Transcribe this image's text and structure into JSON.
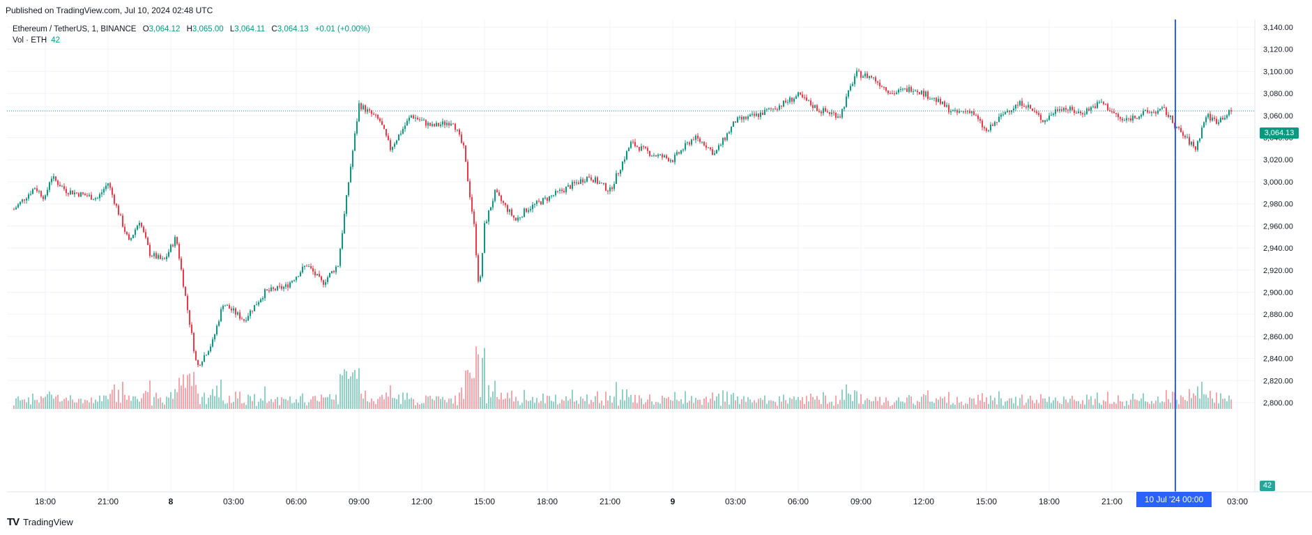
{
  "header": {
    "published": "Published on TradingView.com, Jul 10, 2024 02:48 UTC"
  },
  "legend": {
    "symbol": "Ethereum / TetherUS, 1, BINANCE",
    "o_label": "O",
    "o_value": "3,064.12",
    "h_label": "H",
    "h_value": "3,065.00",
    "l_label": "L",
    "l_value": "3,064.11",
    "c_label": "C",
    "c_value": "3,064.13",
    "change": "+0.01 (+0.00%)",
    "volume_label": "Vol · ETH",
    "volume_value": "42"
  },
  "price_axis": {
    "ticks": [
      "3,140.00",
      "3,120.00",
      "3,100.00",
      "3,080.00",
      "3,060.00",
      "3,040.00",
      "3,020.00",
      "3,000.00",
      "2,980.00",
      "2,960.00",
      "2,940.00",
      "2,920.00",
      "2,900.00",
      "2,880.00",
      "2,860.00",
      "2,840.00",
      "2,820.00",
      "2,800.00"
    ],
    "current_price": "3,064.13",
    "current_volume": "42"
  },
  "time_axis": {
    "ticks": [
      "18:00",
      "21:00",
      "8",
      "03:00",
      "06:00",
      "09:00",
      "12:00",
      "15:00",
      "18:00",
      "21:00",
      "9",
      "03:00",
      "06:00",
      "09:00",
      "12:00",
      "15:00",
      "18:00",
      "21:00",
      "10 Jul '24   00:00",
      "03:00"
    ]
  },
  "colors": {
    "up": "#089981",
    "down": "#f23645",
    "crosshair": "#2962ff",
    "grid": "#f0f3fa"
  },
  "brand": {
    "name": "TradingView",
    "logo_icon": "tradingview-logo-icon"
  },
  "chart_data": {
    "type": "candlestick",
    "title": "Ethereum / TetherUS, 1, BINANCE",
    "y_range": [
      2800,
      3140
    ],
    "x_range_hours": [
      "Jul 7 16:30",
      "Jul 10 03:30"
    ],
    "last_price": 3064.13,
    "price_path": [
      {
        "t": "Jul 7 16:30",
        "p": 2975
      },
      {
        "t": "Jul 7 17:30",
        "p": 2995
      },
      {
        "t": "Jul 7 18:00",
        "p": 2985
      },
      {
        "t": "Jul 7 18:15",
        "p": 3005
      },
      {
        "t": "Jul 7 19:00",
        "p": 2992
      },
      {
        "t": "Jul 7 20:30",
        "p": 2985
      },
      {
        "t": "Jul 7 21:00",
        "p": 2999
      },
      {
        "t": "Jul 7 21:30",
        "p": 2972
      },
      {
        "t": "Jul 7 22:00",
        "p": 2945
      },
      {
        "t": "Jul 7 22:30",
        "p": 2965
      },
      {
        "t": "Jul 7 23:00",
        "p": 2935
      },
      {
        "t": "Jul 7 23:40",
        "p": 2928
      },
      {
        "t": "Jul 8 00:15",
        "p": 2950
      },
      {
        "t": "Jul 8 00:45",
        "p": 2890
      },
      {
        "t": "Jul 8 01:15",
        "p": 2832
      },
      {
        "t": "Jul 8 02:00",
        "p": 2855
      },
      {
        "t": "Jul 8 02:30",
        "p": 2890
      },
      {
        "t": "Jul 8 03:30",
        "p": 2875
      },
      {
        "t": "Jul 8 04:30",
        "p": 2900
      },
      {
        "t": "Jul 8 05:30",
        "p": 2905
      },
      {
        "t": "Jul 8 06:30",
        "p": 2925
      },
      {
        "t": "Jul 8 07:15",
        "p": 2908
      },
      {
        "t": "Jul 8 08:00",
        "p": 2925
      },
      {
        "t": "Jul 8 08:30",
        "p": 3000
      },
      {
        "t": "Jul 8 09:00",
        "p": 3070
      },
      {
        "t": "Jul 8 10:00",
        "p": 3055
      },
      {
        "t": "Jul 8 10:30",
        "p": 3030
      },
      {
        "t": "Jul 8 11:30",
        "p": 3060
      },
      {
        "t": "Jul 8 12:30",
        "p": 3050
      },
      {
        "t": "Jul 8 13:30",
        "p": 3055
      },
      {
        "t": "Jul 8 14:00",
        "p": 3030
      },
      {
        "t": "Jul 8 14:30",
        "p": 2960
      },
      {
        "t": "Jul 8 14:45",
        "p": 2900
      },
      {
        "t": "Jul 8 15:00",
        "p": 2960
      },
      {
        "t": "Jul 8 15:30",
        "p": 2990
      },
      {
        "t": "Jul 8 16:30",
        "p": 2965
      },
      {
        "t": "Jul 8 17:00",
        "p": 2975
      },
      {
        "t": "Jul 8 18:00",
        "p": 2985
      },
      {
        "t": "Jul 8 19:00",
        "p": 2995
      },
      {
        "t": "Jul 8 20:00",
        "p": 3005
      },
      {
        "t": "Jul 8 21:00",
        "p": 2992
      },
      {
        "t": "Jul 8 22:00",
        "p": 3035
      },
      {
        "t": "Jul 8 23:00",
        "p": 3025
      },
      {
        "t": "Jul 9 00:00",
        "p": 3020
      },
      {
        "t": "Jul 9 01:00",
        "p": 3040
      },
      {
        "t": "Jul 9 01:30",
        "p": 3035
      },
      {
        "t": "Jul 9 02:00",
        "p": 3025
      },
      {
        "t": "Jul 9 03:00",
        "p": 3055
      },
      {
        "t": "Jul 9 04:00",
        "p": 3060
      },
      {
        "t": "Jul 9 05:00",
        "p": 3068
      },
      {
        "t": "Jul 9 06:00",
        "p": 3078
      },
      {
        "t": "Jul 9 07:00",
        "p": 3065
      },
      {
        "t": "Jul 9 08:00",
        "p": 3060
      },
      {
        "t": "Jul 9 08:45",
        "p": 3098
      },
      {
        "t": "Jul 9 09:30",
        "p": 3095
      },
      {
        "t": "Jul 9 10:30",
        "p": 3080
      },
      {
        "t": "Jul 9 11:30",
        "p": 3085
      },
      {
        "t": "Jul 9 12:30",
        "p": 3075
      },
      {
        "t": "Jul 9 13:30",
        "p": 3062
      },
      {
        "t": "Jul 9 14:15",
        "p": 3065
      },
      {
        "t": "Jul 9 15:00",
        "p": 3045
      },
      {
        "t": "Jul 9 16:00",
        "p": 3065
      },
      {
        "t": "Jul 9 16:45",
        "p": 3072
      },
      {
        "t": "Jul 9 17:45",
        "p": 3055
      },
      {
        "t": "Jul 9 18:30",
        "p": 3068
      },
      {
        "t": "Jul 9 19:30",
        "p": 3062
      },
      {
        "t": "Jul 9 20:30",
        "p": 3072
      },
      {
        "t": "Jul 9 21:30",
        "p": 3055
      },
      {
        "t": "Jul 9 22:30",
        "p": 3062
      },
      {
        "t": "Jul 9 23:30",
        "p": 3065
      },
      {
        "t": "Jul 10 00:15",
        "p": 3045
      },
      {
        "t": "Jul 10 01:00",
        "p": 3030
      },
      {
        "t": "Jul 10 01:30",
        "p": 3060
      },
      {
        "t": "Jul 10 02:00",
        "p": 3055
      },
      {
        "t": "Jul 10 02:45",
        "p": 3064
      }
    ]
  }
}
